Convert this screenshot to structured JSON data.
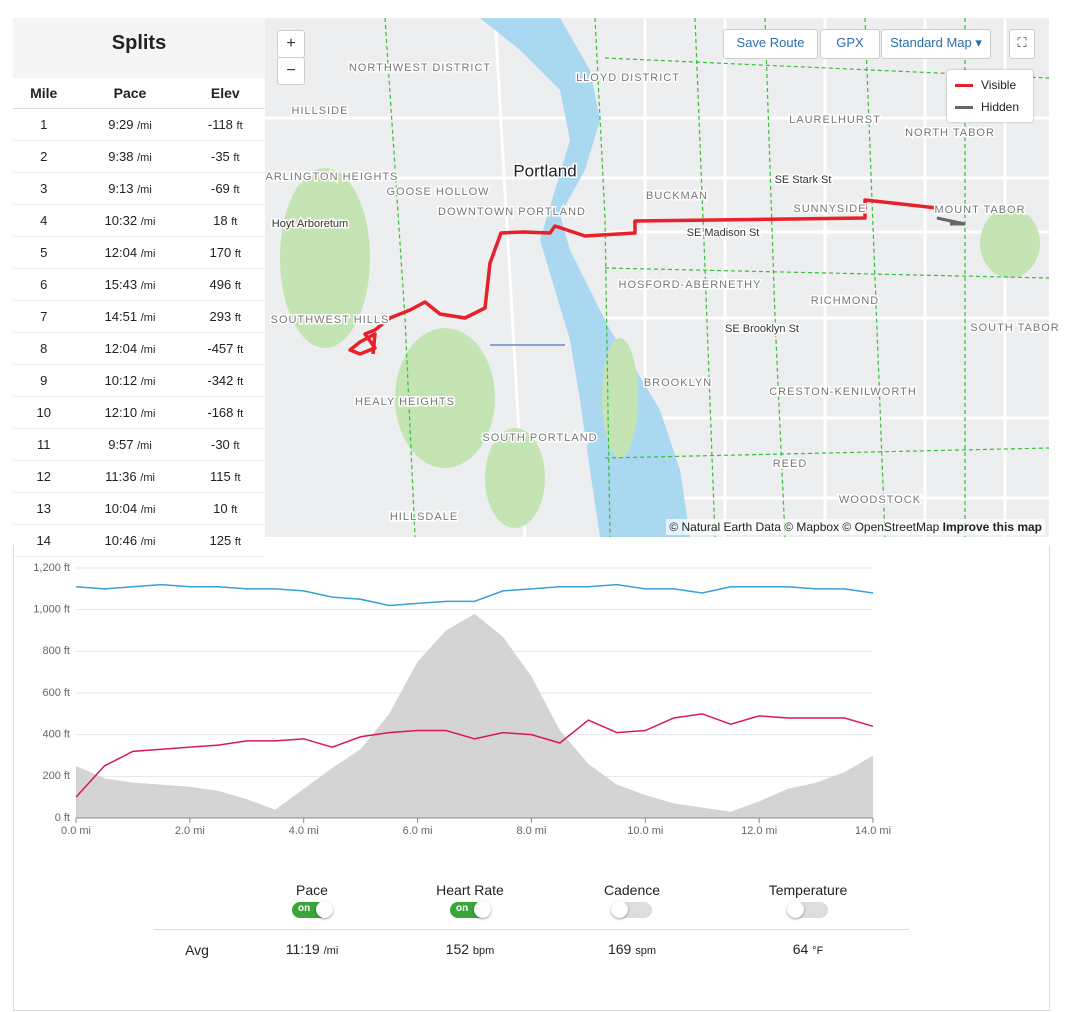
{
  "splits": {
    "title": "Splits",
    "headers": [
      "Mile",
      "Pace",
      "Elev"
    ],
    "rows": [
      {
        "mile": 1,
        "pace": "9:29",
        "pace_unit": "/mi",
        "elev": -118,
        "elev_unit": "ft"
      },
      {
        "mile": 2,
        "pace": "9:38",
        "pace_unit": "/mi",
        "elev": -35,
        "elev_unit": "ft"
      },
      {
        "mile": 3,
        "pace": "9:13",
        "pace_unit": "/mi",
        "elev": -69,
        "elev_unit": "ft"
      },
      {
        "mile": 4,
        "pace": "10:32",
        "pace_unit": "/mi",
        "elev": 18,
        "elev_unit": "ft"
      },
      {
        "mile": 5,
        "pace": "12:04",
        "pace_unit": "/mi",
        "elev": 170,
        "elev_unit": "ft"
      },
      {
        "mile": 6,
        "pace": "15:43",
        "pace_unit": "/mi",
        "elev": 496,
        "elev_unit": "ft"
      },
      {
        "mile": 7,
        "pace": "14:51",
        "pace_unit": "/mi",
        "elev": 293,
        "elev_unit": "ft"
      },
      {
        "mile": 8,
        "pace": "12:04",
        "pace_unit": "/mi",
        "elev": -457,
        "elev_unit": "ft"
      },
      {
        "mile": 9,
        "pace": "10:12",
        "pace_unit": "/mi",
        "elev": -342,
        "elev_unit": "ft"
      },
      {
        "mile": 10,
        "pace": "12:10",
        "pace_unit": "/mi",
        "elev": -168,
        "elev_unit": "ft"
      },
      {
        "mile": 11,
        "pace": "9:57",
        "pace_unit": "/mi",
        "elev": -30,
        "elev_unit": "ft"
      },
      {
        "mile": 12,
        "pace": "11:36",
        "pace_unit": "/mi",
        "elev": 115,
        "elev_unit": "ft"
      },
      {
        "mile": 13,
        "pace": "10:04",
        "pace_unit": "/mi",
        "elev": 10,
        "elev_unit": "ft"
      },
      {
        "mile": 14,
        "pace": "10:46",
        "pace_unit": "/mi",
        "elev": 125,
        "elev_unit": "ft"
      }
    ]
  },
  "map": {
    "zoom_in": "+",
    "zoom_out": "−",
    "buttons": [
      "Save Route",
      "GPX",
      "Standard Map"
    ],
    "legend": [
      {
        "name": "Visible",
        "color": "#e8202a"
      },
      {
        "name": "Hidden",
        "color": "#666666"
      }
    ],
    "attribution": "© Natural Earth Data © Mapbox © OpenStreetMap",
    "improve": "Improve this map",
    "labels": [
      "NORTHWEST DISTRICT",
      "LLOYD DISTRICT",
      "HILLSIDE",
      "LAURELHURST",
      "NORTH TABOR",
      "ARLINGTON HEIGHTS",
      "Portland",
      "GOOSE HOLLOW",
      "SE Stark St",
      "BUCKMAN",
      "DOWNTOWN PORTLAND",
      "SUNNYSIDE",
      "MOUNT TABOR",
      "Hoyt Arboretum",
      "SE Madison St",
      "HOSFORD-ABERNETHY",
      "RICHMOND",
      "SOUTHWEST HILLS",
      "SE Brooklyn St",
      "SOUTH TABOR",
      "BROOKLYN",
      "CRESTON-KENILWORTH",
      "HEALY HEIGHTS",
      "SOUTH PORTLAND",
      "REED",
      "WOODSTOCK",
      "HILLSDALE"
    ]
  },
  "chart_data": {
    "type": "line",
    "x": [
      0,
      0.5,
      1,
      1.5,
      2,
      2.5,
      3,
      3.5,
      4,
      4.5,
      5,
      5.5,
      6,
      6.5,
      7,
      7.5,
      8,
      8.5,
      9,
      9.5,
      10,
      10.5,
      11,
      11.5,
      12,
      12.5,
      13,
      13.5,
      14
    ],
    "series": [
      {
        "style": "area",
        "color": "#d4d4d4",
        "values": [
          250,
          190,
          170,
          160,
          150,
          130,
          90,
          40,
          140,
          240,
          330,
          500,
          750,
          900,
          980,
          870,
          680,
          420,
          260,
          160,
          110,
          70,
          50,
          30,
          80,
          140,
          170,
          220,
          300
        ]
      },
      {
        "color": "#3a9fd6",
        "values": [
          1110,
          1100,
          1110,
          1120,
          1110,
          1110,
          1100,
          1100,
          1090,
          1060,
          1050,
          1020,
          1030,
          1040,
          1040,
          1090,
          1100,
          1110,
          1110,
          1120,
          1100,
          1100,
          1080,
          1110,
          1110,
          1110,
          1100,
          1100,
          1080
        ]
      },
      {
        "color": "#d81b4f",
        "values": [
          100,
          250,
          320,
          330,
          340,
          350,
          370,
          370,
          380,
          340,
          390,
          410,
          420,
          420,
          380,
          410,
          400,
          360,
          470,
          410,
          420,
          480,
          500,
          450,
          490,
          480,
          480,
          480,
          440
        ]
      }
    ],
    "xlim": [
      0,
      14
    ],
    "xticks": [
      {
        "value": 0,
        "label": "0.0 mi"
      },
      {
        "value": 2,
        "label": "2.0 mi"
      },
      {
        "value": 4,
        "label": "4.0 mi"
      },
      {
        "value": 6,
        "label": "6.0 mi"
      },
      {
        "value": 8,
        "label": "8.0 mi"
      },
      {
        "value": 10,
        "label": "10.0 mi"
      },
      {
        "value": 12,
        "label": "12.0 mi"
      },
      {
        "value": 14,
        "label": "14.0 mi"
      }
    ],
    "ylim": [
      0,
      1200
    ],
    "yticks": [
      {
        "value": 0,
        "label": "0 ft"
      },
      {
        "value": 200,
        "label": "200 ft"
      },
      {
        "value": 400,
        "label": "400 ft"
      },
      {
        "value": 600,
        "label": "600 ft"
      },
      {
        "value": 800,
        "label": "800 ft"
      },
      {
        "value": 1000,
        "label": "1,000 ft"
      },
      {
        "value": 1200,
        "label": "1,200 ft"
      }
    ],
    "grid": true
  },
  "toggles": [
    {
      "label": "Pace",
      "on": true,
      "on_text": "on"
    },
    {
      "label": "Heart Rate",
      "on": true,
      "on_text": "on"
    },
    {
      "label": "Cadence",
      "on": false
    },
    {
      "label": "Temperature",
      "on": false
    }
  ],
  "averages": {
    "label": "Avg",
    "items": [
      {
        "value": "11:19",
        "unit": "/mi"
      },
      {
        "value": 152,
        "unit": "bpm"
      },
      {
        "value": 169,
        "unit": "spm"
      },
      {
        "value": 64,
        "unit": "°F"
      }
    ]
  }
}
